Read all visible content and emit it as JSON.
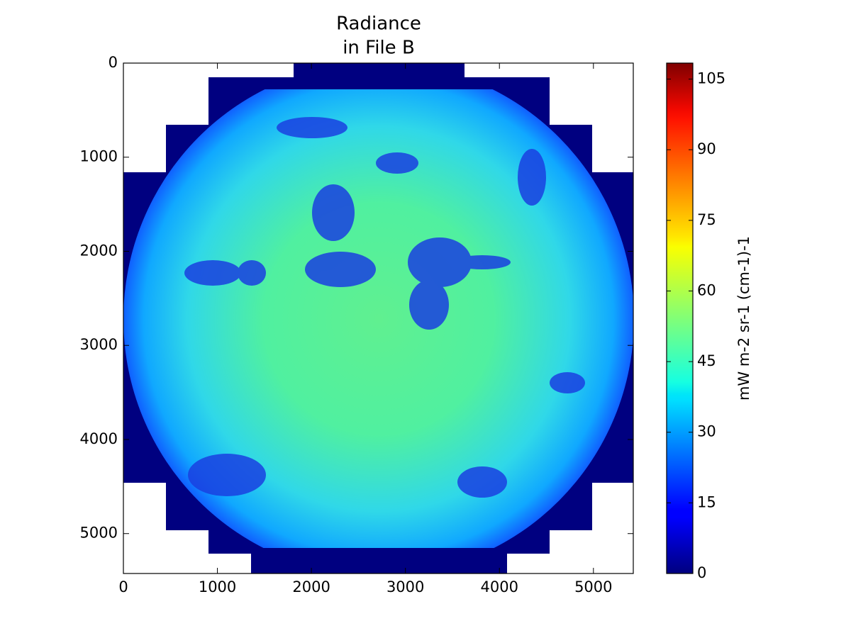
{
  "chart_data": {
    "type": "image",
    "title": [
      "Radiance",
      "in File B"
    ],
    "xlim": [
      0,
      5424
    ],
    "xticks": [
      0,
      1000,
      2000,
      3000,
      4000,
      5000
    ],
    "ylim": [
      0,
      5424
    ],
    "yticks": [
      0,
      1000,
      2000,
      3000,
      4000,
      5000
    ],
    "y_inverted": true,
    "colormap": "jet",
    "colorbar": {
      "label": "mW m-2 sr-1 (cm-1)-1",
      "clim": [
        0,
        108.4
      ],
      "ticks": [
        0,
        15,
        30,
        45,
        60,
        75,
        90,
        105
      ]
    }
  }
}
